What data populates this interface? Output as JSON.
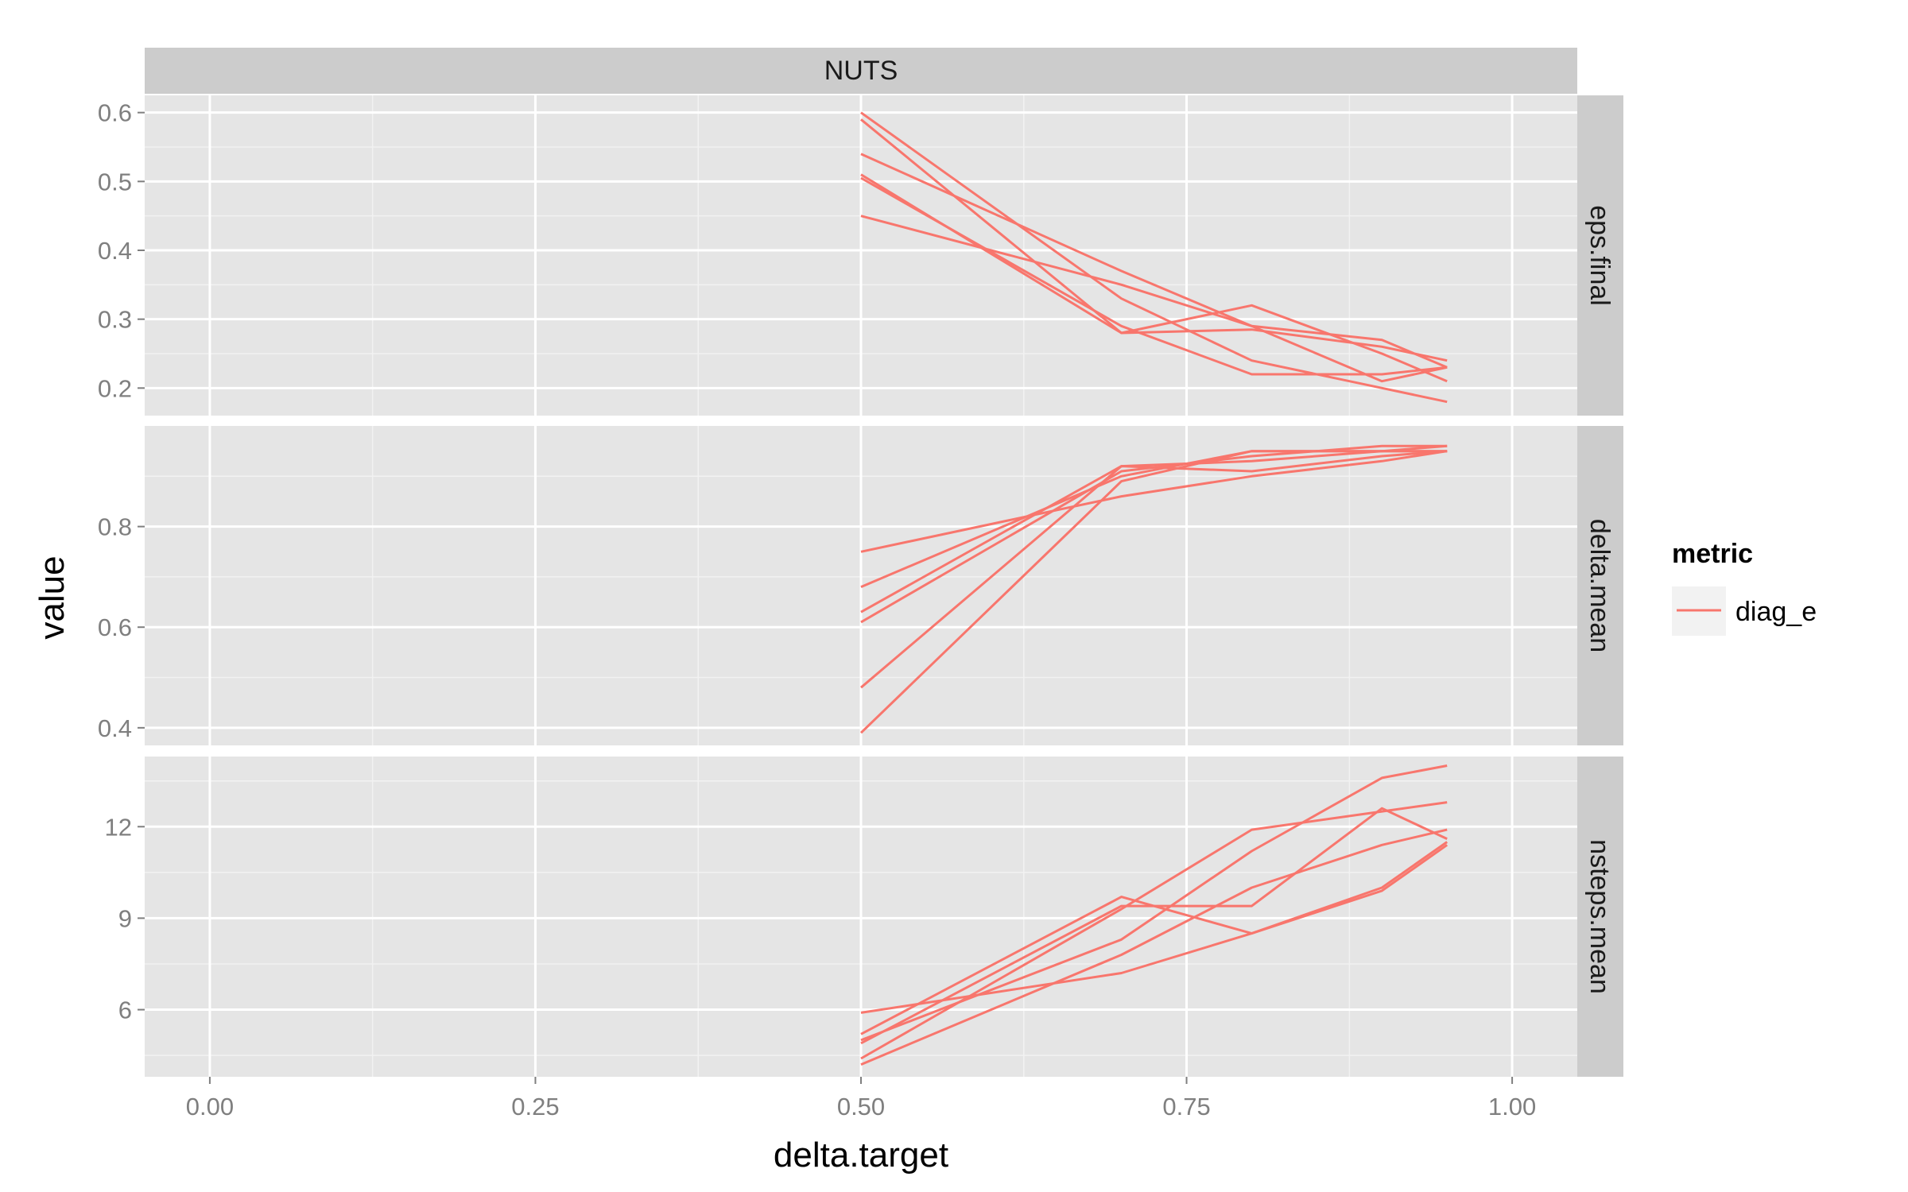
{
  "chart_data": {
    "type": "line",
    "facet_column_label": "NUTS",
    "xlabel": "delta.target",
    "ylabel": "value",
    "x_ticks": [
      "0.00",
      "0.25",
      "0.50",
      "0.75",
      "1.00"
    ],
    "x_tick_values": [
      0,
      0.25,
      0.5,
      0.75,
      1.0
    ],
    "xlim": [
      -0.05,
      1.05
    ],
    "x": [
      0.5,
      0.7,
      0.8,
      0.9,
      0.95
    ],
    "legend": {
      "title": "metric",
      "position": "right",
      "entries": [
        {
          "label": "diag_e",
          "color": "#F8766D"
        }
      ]
    },
    "colors": {
      "line": "#F8766D",
      "panel_bg": "#E5E5E5",
      "strip_bg": "#CCCCCC",
      "grid_major": "#FFFFFF",
      "grid_minor": "#F2F2F2",
      "tick_text": "#7F7F7F"
    },
    "grid": true,
    "panels": [
      {
        "label": "eps.final",
        "ylim": [
          0.16,
          0.625
        ],
        "y_ticks": [
          "0.2",
          "0.3",
          "0.4",
          "0.5",
          "0.6"
        ],
        "y_tick_values": [
          0.2,
          0.3,
          0.4,
          0.5,
          0.6
        ],
        "series": [
          {
            "values": [
              0.6,
              0.33,
              0.24,
              0.2,
              0.18
            ]
          },
          {
            "values": [
              0.59,
              0.28,
              0.285,
              0.26,
              0.24
            ]
          },
          {
            "values": [
              0.54,
              0.37,
              0.29,
              0.27,
              0.23
            ]
          },
          {
            "values": [
              0.51,
              0.28,
              0.32,
              0.25,
              0.21
            ]
          },
          {
            "values": [
              0.505,
              0.29,
              0.22,
              0.22,
              0.23
            ]
          },
          {
            "values": [
              0.45,
              0.35,
              0.29,
              0.21,
              0.23
            ]
          }
        ]
      },
      {
        "label": "delta.mean",
        "ylim": [
          0.365,
          1.0
        ],
        "y_ticks": [
          "0.4",
          "0.6",
          "0.8"
        ],
        "y_tick_values": [
          0.4,
          0.6,
          0.8
        ],
        "series": [
          {
            "values": [
              0.75,
              0.86,
              0.9,
              0.93,
              0.95
            ]
          },
          {
            "values": [
              0.68,
              0.9,
              0.95,
              0.95,
              0.96
            ]
          },
          {
            "values": [
              0.63,
              0.92,
              0.91,
              0.94,
              0.95
            ]
          },
          {
            "values": [
              0.61,
              0.91,
              0.94,
              0.96,
              0.96
            ]
          },
          {
            "values": [
              0.48,
              0.92,
              0.93,
              0.95,
              0.95
            ]
          },
          {
            "values": [
              0.39,
              0.89,
              0.95,
              0.95,
              0.95
            ]
          }
        ]
      },
      {
        "label": "nsteps.mean",
        "ylim": [
          3.8,
          14.3
        ],
        "y_ticks": [
          "6",
          "9",
          "12"
        ],
        "y_tick_values": [
          6,
          9,
          12
        ],
        "series": [
          {
            "values": [
              5.9,
              7.2,
              8.5,
              10.0,
              11.5
            ]
          },
          {
            "values": [
              5.2,
              9.7,
              8.5,
              9.9,
              11.4
            ]
          },
          {
            "values": [
              5.0,
              8.3,
              11.2,
              13.6,
              14.0
            ]
          },
          {
            "values": [
              4.9,
              9.4,
              9.4,
              12.6,
              11.6
            ]
          },
          {
            "values": [
              4.4,
              9.3,
              11.9,
              12.5,
              12.8
            ]
          },
          {
            "values": [
              4.2,
              7.8,
              10.0,
              11.4,
              11.9
            ]
          }
        ]
      }
    ]
  }
}
